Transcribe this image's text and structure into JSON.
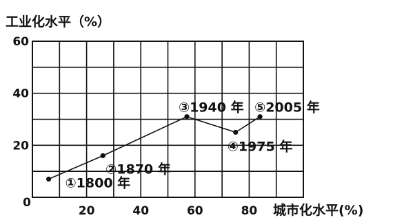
{
  "chart_data": {
    "type": "line",
    "xlabel": "城市化水平(%)",
    "ylabel": "工业化水平（%）",
    "xlim": [
      0,
      100
    ],
    "ylim": [
      0,
      60
    ],
    "x_ticks": [
      "0",
      "20",
      "40",
      "60",
      "80"
    ],
    "y_ticks": [
      "20",
      "40",
      "60"
    ],
    "grid": true,
    "series": [
      {
        "points": [
          {
            "x": 6,
            "y": 7,
            "label": "①1800 年"
          },
          {
            "x": 26,
            "y": 16,
            "label": "②1870 年"
          },
          {
            "x": 57,
            "y": 31,
            "label": "③1940 年"
          },
          {
            "x": 75,
            "y": 25,
            "label": "④1975 年"
          },
          {
            "x": 84,
            "y": 31,
            "label": "⑤2005 年"
          }
        ]
      }
    ]
  }
}
